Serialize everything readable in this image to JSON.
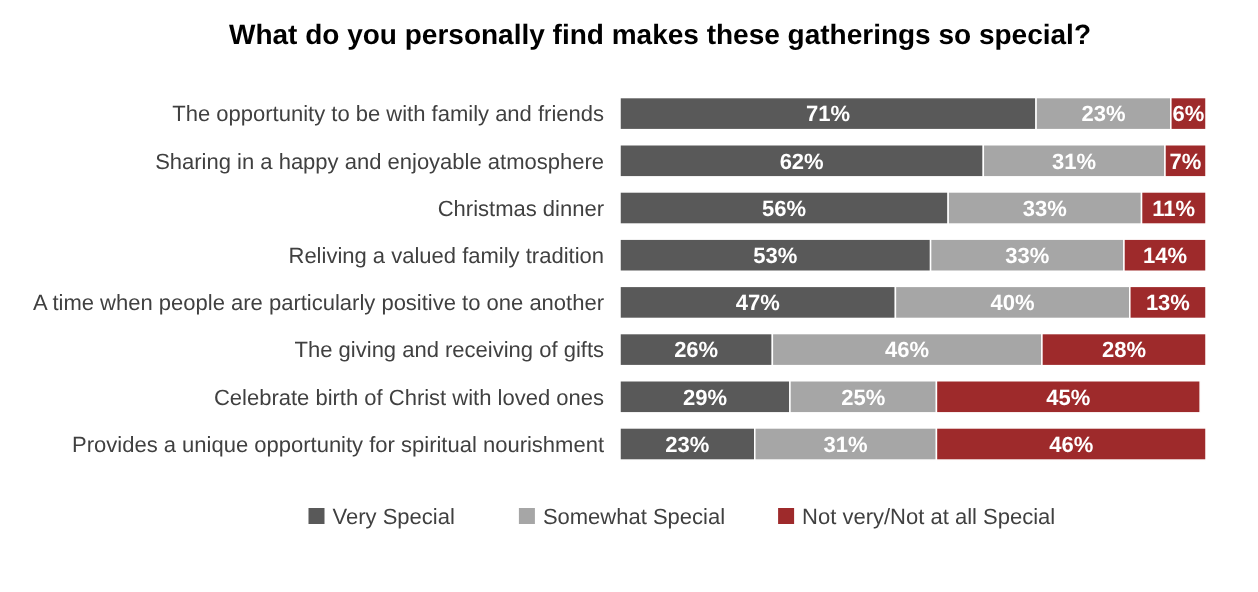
{
  "chart_data": {
    "type": "bar",
    "orientation": "horizontal",
    "stacked": true,
    "title": "What do you personally find makes these gatherings so special?",
    "categories": [
      "The opportunity to be with family and friends",
      "Sharing in a happy and enjoyable atmosphere",
      "Christmas dinner",
      "Reliving a valued family tradition",
      "A time when people are particularly positive to one another",
      "The giving and receiving of gifts",
      "Celebrate birth of Christ with loved ones",
      "Provides a unique opportunity for spiritual nourishment"
    ],
    "series": [
      {
        "name": "Very Special",
        "color": "#595959",
        "values": [
          71,
          62,
          56,
          53,
          47,
          26,
          29,
          23
        ],
        "value_labels": [
          "71%",
          "62%",
          "56%",
          "53%",
          "47%",
          "26%",
          "29%",
          "23%"
        ]
      },
      {
        "name": "Somewhat Special",
        "color": "#a6a6a6",
        "values": [
          23,
          31,
          33,
          33,
          40,
          46,
          25,
          31
        ],
        "value_labels": [
          "23%",
          "31%",
          "33%",
          "33%",
          "40%",
          "46%",
          "25%",
          "31%"
        ]
      },
      {
        "name": "Not very/Not at all Special",
        "color": "#9e2a2b",
        "values": [
          6,
          7,
          11,
          14,
          13,
          28,
          45,
          46
        ],
        "value_labels": [
          "6%",
          "7%",
          "11%",
          "14%",
          "13%",
          "28%",
          "45%",
          "46%"
        ]
      }
    ],
    "legend": "bottom",
    "grid": false
  }
}
